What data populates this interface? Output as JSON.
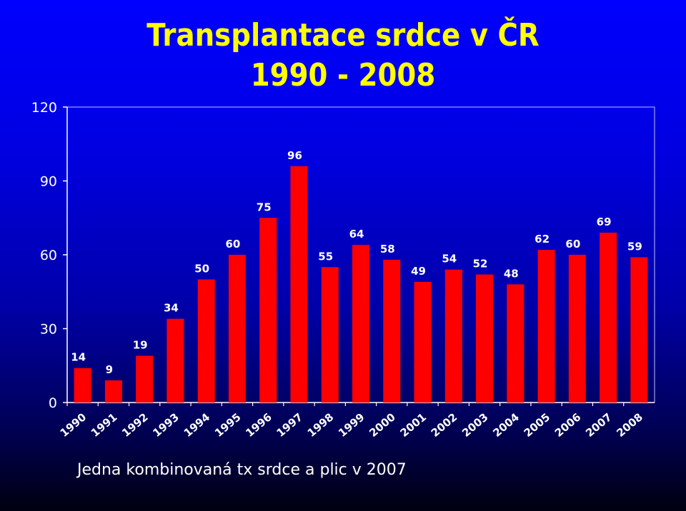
{
  "colors": {
    "bar": "#ff0000",
    "text": "#ffffff",
    "title": "#ffff00",
    "axis": "#ffffff"
  },
  "header": {
    "title_line1": "Transplantace srdce v ČR",
    "title_line2": "1990 - 2008"
  },
  "footnote": "Jedna kombinovaná tx srdce a plic v 2007",
  "chart_data": {
    "type": "bar",
    "categories": [
      "1990",
      "1991",
      "1992",
      "1993",
      "1994",
      "1995",
      "1996",
      "1997",
      "1998",
      "1999",
      "2000",
      "2001",
      "2002",
      "2003",
      "2004",
      "2005",
      "2006",
      "2007",
      "2008"
    ],
    "values": [
      14,
      9,
      19,
      34,
      50,
      60,
      75,
      96,
      55,
      64,
      58,
      49,
      54,
      52,
      48,
      62,
      60,
      69,
      59
    ],
    "ylim": [
      0,
      120
    ],
    "yticks": [
      0,
      30,
      60,
      90,
      120
    ],
    "grid": false,
    "legend": "none",
    "data_labels": true
  }
}
